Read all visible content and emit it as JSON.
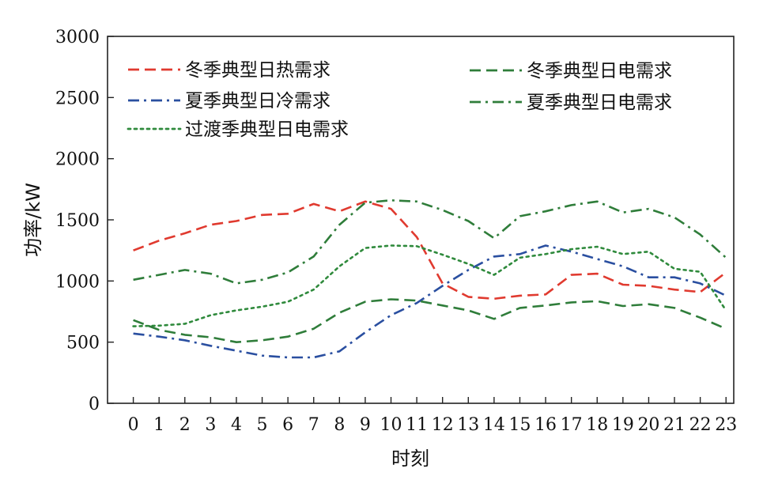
{
  "chart_data": {
    "type": "line",
    "xlabel": "时刻",
    "ylabel": "功率/kW",
    "xlim": [
      -1,
      23.3
    ],
    "ylim": [
      0,
      3000
    ],
    "x_ticks": [
      "0",
      "1",
      "2",
      "3",
      "4",
      "5",
      "6",
      "7",
      "8",
      "9",
      "10",
      "11",
      "12",
      "13",
      "14",
      "15",
      "16",
      "17",
      "18",
      "19",
      "20",
      "21",
      "22",
      "23"
    ],
    "y_ticks": [
      "0",
      "500",
      "1000",
      "1500",
      "2000",
      "2500",
      "3000"
    ],
    "grid": false,
    "legend_position": "top",
    "x": [
      0,
      1,
      2,
      3,
      4,
      5,
      6,
      7,
      8,
      9,
      10,
      11,
      12,
      13,
      14,
      15,
      16,
      17,
      18,
      19,
      20,
      21,
      22,
      23
    ],
    "series": [
      {
        "name": "冬季典型日热需求",
        "color": "#e03a2f",
        "dash": "dashed",
        "values": [
          1250,
          1330,
          1390,
          1460,
          1490,
          1540,
          1550,
          1630,
          1570,
          1650,
          1590,
          1360,
          980,
          870,
          855,
          880,
          890,
          1050,
          1060,
          970,
          960,
          930,
          910,
          1070
        ]
      },
      {
        "name": "夏季典型日冷需求",
        "color": "#2a4fa0",
        "dash": "dashdot",
        "values": [
          570,
          545,
          515,
          470,
          430,
          390,
          375,
          375,
          425,
          580,
          720,
          820,
          960,
          1090,
          1200,
          1220,
          1290,
          1240,
          1180,
          1120,
          1030,
          1030,
          980,
          880
        ]
      },
      {
        "name": "过渡季典型日电需求",
        "color": "#2f8a3c",
        "dash": "dotted",
        "values": [
          630,
          635,
          650,
          720,
          760,
          790,
          830,
          930,
          1120,
          1270,
          1290,
          1285,
          1215,
          1140,
          1050,
          1190,
          1220,
          1260,
          1280,
          1220,
          1240,
          1100,
          1075,
          760
        ]
      },
      {
        "name": "冬季典型日电需求",
        "color": "#2f7d3a",
        "dash": "dashed",
        "values": [
          680,
          600,
          560,
          540,
          500,
          515,
          545,
          610,
          740,
          830,
          850,
          840,
          800,
          760,
          690,
          780,
          800,
          825,
          835,
          795,
          810,
          780,
          700,
          610
        ]
      },
      {
        "name": "夏季典型日电需求",
        "color": "#2f7d3a",
        "dash": "dashdot",
        "values": [
          1010,
          1050,
          1090,
          1060,
          980,
          1010,
          1070,
          1200,
          1460,
          1640,
          1660,
          1650,
          1580,
          1490,
          1350,
          1530,
          1570,
          1620,
          1650,
          1560,
          1590,
          1520,
          1380,
          1190
        ]
      }
    ]
  }
}
